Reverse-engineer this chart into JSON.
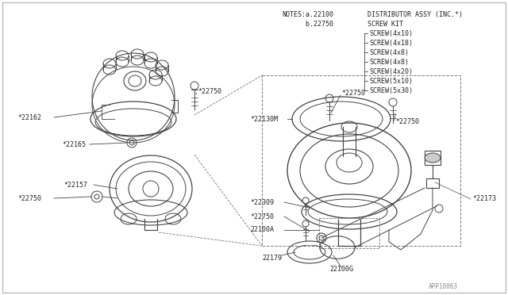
{
  "bg_color": "#ffffff",
  "line_color": "#444444",
  "text_color": "#222222",
  "footer": "APP10063",
  "notes": [
    "NOTES:a.22100   DISTRIBUTOR ASSY (INC.*)",
    "      b.22750   SCREW KIT",
    "                —SCREW(4x10)",
    "                —SCREW(4x18)",
    "                —SCREW(4x8)",
    "                —SCREW(4x8)",
    "                —SCREW(4x20)",
    "                —SCREW(5x10)",
    "                —SCREW(5x30)"
  ]
}
